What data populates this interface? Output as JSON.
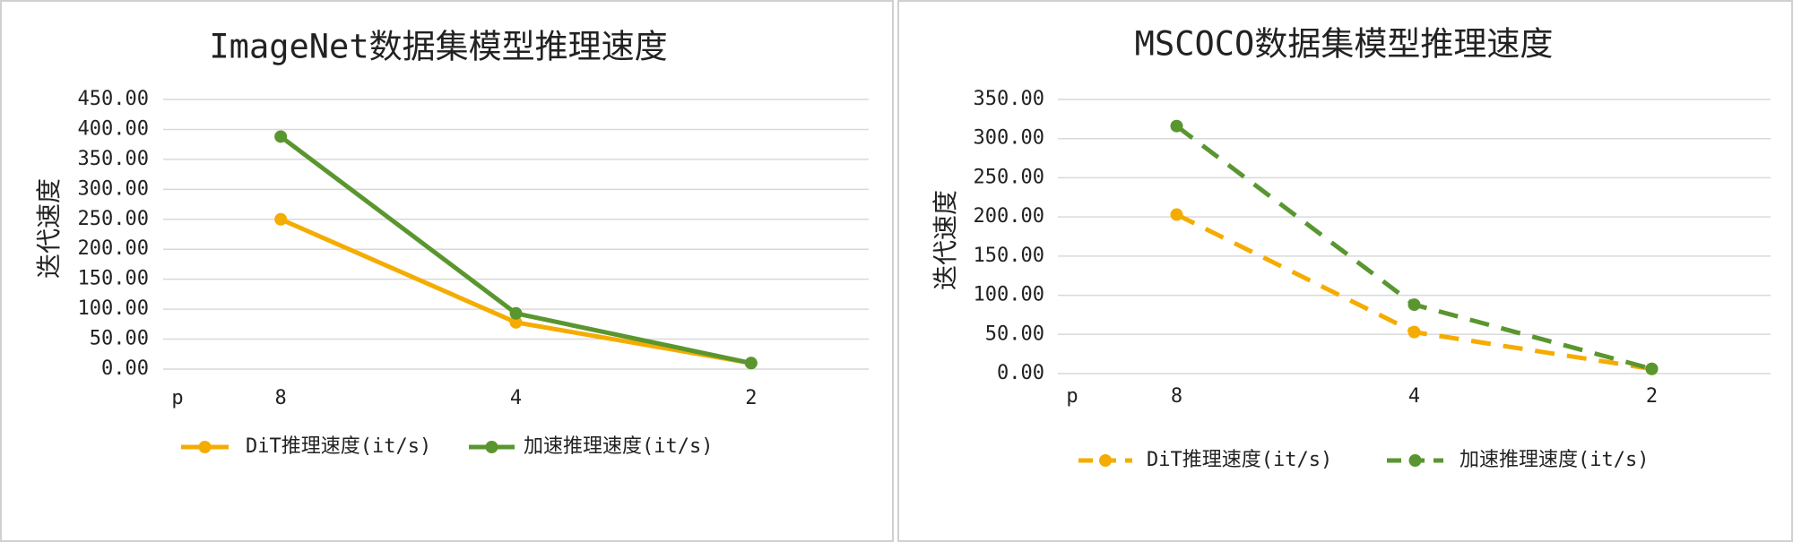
{
  "chart_data": [
    {
      "type": "line",
      "title": "ImageNet数据集模型推理速度",
      "y_label": "迭代速度",
      "x_label": "p",
      "categories": [
        "8",
        "4",
        "2"
      ],
      "series": [
        {
          "name": "DiT推理速度(it/s)",
          "color": "#f5ac00",
          "values": [
            250,
            78,
            10
          ]
        },
        {
          "name": "加速推理速度(it/s)",
          "color": "#5a962f",
          "values": [
            388,
            93,
            10
          ]
        }
      ],
      "ylim": [
        0,
        450
      ],
      "yticks": [
        {
          "value": 0,
          "label": "0.00"
        },
        {
          "value": 50,
          "label": "50.00"
        },
        {
          "value": 100,
          "label": "100.00"
        },
        {
          "value": 150,
          "label": "150.00"
        },
        {
          "value": 200,
          "label": "200.00"
        },
        {
          "value": 250,
          "label": "250.00"
        },
        {
          "value": 300,
          "label": "300.00"
        },
        {
          "value": 350,
          "label": "350.00"
        },
        {
          "value": 400,
          "label": "400.00"
        },
        {
          "value": 450,
          "label": "450.00"
        }
      ],
      "grid": true,
      "line_style": "solid",
      "legend": "bottom"
    },
    {
      "type": "line",
      "title": "MSCOCO数据集模型推理速度",
      "y_label": "迭代速度",
      "x_label": "p",
      "categories": [
        "8",
        "4",
        "2"
      ],
      "series": [
        {
          "name": "DiT推理速度(it/s)",
          "color": "#f5ac00",
          "values": [
            203,
            53,
            6
          ]
        },
        {
          "name": "加速推理速度(it/s)",
          "color": "#5a962f",
          "values": [
            316,
            88,
            6
          ]
        }
      ],
      "ylim": [
        0,
        350
      ],
      "yticks": [
        {
          "value": 0,
          "label": "0.00"
        },
        {
          "value": 50,
          "label": "50.00"
        },
        {
          "value": 100,
          "label": "100.00"
        },
        {
          "value": 150,
          "label": "150.00"
        },
        {
          "value": 200,
          "label": "200.00"
        },
        {
          "value": 250,
          "label": "250.00"
        },
        {
          "value": 300,
          "label": "300.00"
        },
        {
          "value": 350,
          "label": "350.00"
        }
      ],
      "grid": true,
      "line_style": "dashed",
      "legend": "bottom"
    }
  ]
}
